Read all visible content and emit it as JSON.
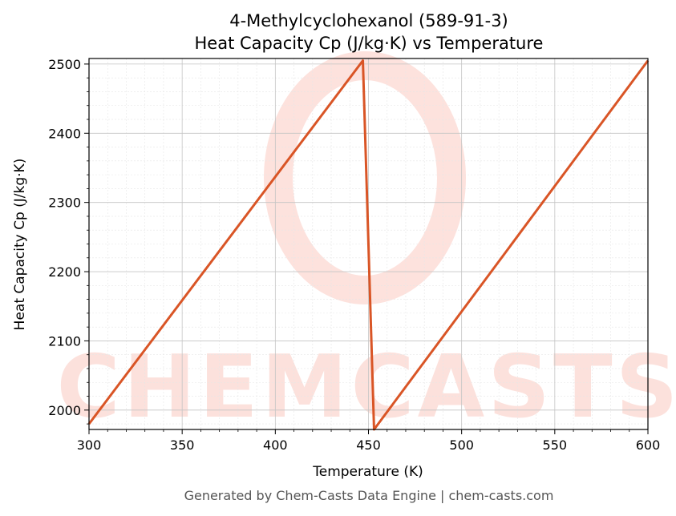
{
  "chart_data": {
    "type": "line",
    "title": "4-Methylcyclohexanol (589-91-3)",
    "subtitle": "Heat Capacity Cp (J/kg·K) vs Temperature",
    "xlabel": "Temperature (K)",
    "ylabel": "Heat Capacity Cp (J/kg·K)",
    "xlim": [
      300,
      600
    ],
    "ylim": [
      1972,
      2508
    ],
    "x_ticks": [
      300,
      350,
      400,
      450,
      500,
      550,
      600
    ],
    "y_ticks": [
      2000,
      2100,
      2200,
      2300,
      2400,
      2500
    ],
    "grid": true,
    "series": [
      {
        "color": "#d95526",
        "x": [
          300,
          447,
          453,
          600
        ],
        "y": [
          1980,
          2505,
          1972,
          2505
        ]
      }
    ],
    "watermark": "CHEMCASTS"
  },
  "footer": "Generated by Chem-Casts Data Engine | chem-casts.com"
}
